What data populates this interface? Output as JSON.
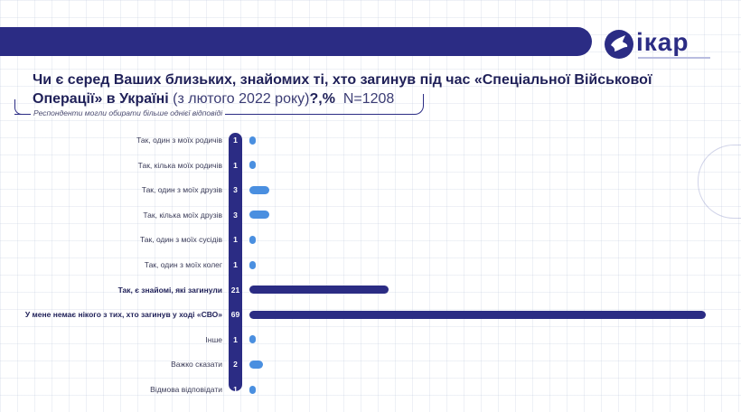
{
  "header": {
    "logo_text": "ікар",
    "colors": {
      "brand": "#2b2c84",
      "accent": "#4a8fe0"
    }
  },
  "title": {
    "main": "Чи є серед Ваших близьких, знайомих ті, хто загинув під час «Спеціальної Військової Операції» в Україні",
    "period": "(з лютого 2022 року)",
    "suffix": "?,%",
    "sample": "N=1208"
  },
  "note": "Респонденти могли обирати більше однієї відповіді",
  "chart_data": {
    "type": "bar",
    "orientation": "horizontal",
    "unit": "%",
    "categories": [
      "Так, один з моїх родичів",
      "Так, кілька моїх родичів",
      "Так, один з моїх друзів",
      "Так, кілька моїх друзів",
      "Так, один з моїх сусідів",
      "Так, один з моїх колег",
      "Так, є знайомі, які загинули",
      "У мене немає нікого з тих, хто загинув у ході «СВО»",
      "Інше",
      "Важко сказати",
      "Відмова відповідати"
    ],
    "values": [
      1,
      1,
      3,
      3,
      1,
      1,
      21,
      69,
      1,
      2,
      1
    ],
    "highlighted": [
      6,
      7
    ],
    "xlim": [
      0,
      69
    ],
    "colors": {
      "highlight": "#2b2c84",
      "default": "#4a8fe0"
    },
    "grid": true
  }
}
